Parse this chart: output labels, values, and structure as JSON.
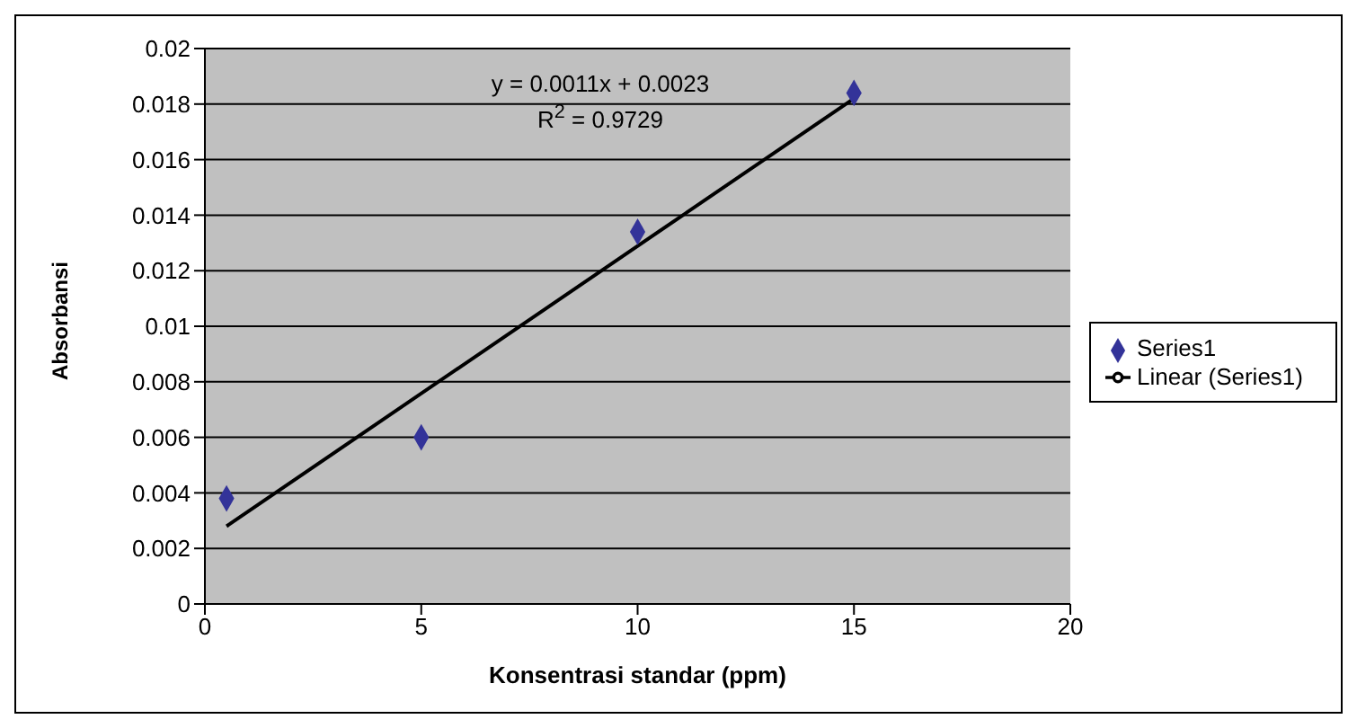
{
  "chart_data": {
    "type": "scatter",
    "xlabel": "Konsentrasi standar (ppm)",
    "ylabel": "Absorbansi",
    "annotations": [
      "y = 0.0011x + 0.0023",
      "R$^{2}$ = 0.9729"
    ],
    "series": [
      {
        "name": "Series1",
        "color": "#333399",
        "marker": "diamond",
        "x": [
          0.5,
          5,
          10,
          15
        ],
        "values": [
          0.0038,
          0.006,
          0.0134,
          0.0184
        ]
      },
      {
        "name": "Linear (Series1)",
        "type": "line",
        "color": "#000000",
        "marker": "none",
        "x": [
          0.5,
          15
        ],
        "values": [
          0.0028,
          0.0182
        ]
      }
    ],
    "xlim": [
      0,
      20
    ],
    "xticks": [
      0,
      5,
      10,
      15,
      20
    ],
    "ylim": [
      0,
      0.02
    ],
    "yticks": [
      0,
      0.002,
      0.004,
      0.006,
      0.008,
      0.01,
      0.012,
      0.014,
      0.016,
      0.018,
      0.02
    ],
    "grid": "y",
    "legend": "right"
  }
}
